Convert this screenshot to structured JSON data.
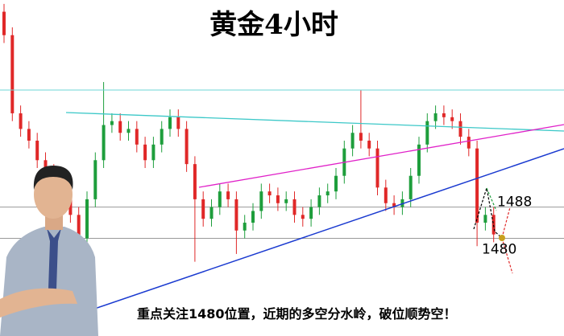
{
  "chart_data": {
    "type": "candlestick",
    "title": "黄金4小时",
    "caption": "重点关注1480位置，近期的多空分水岭，破位顺势空！",
    "ylim": [
      1455,
      1541
    ],
    "levels": [
      1488,
      1480
    ],
    "up_color": "#1e9e3c",
    "down_color": "#e02828",
    "open": [
      1538,
      1532,
      1512,
      1508,
      1505,
      1500,
      1497,
      1495,
      1492,
      1486,
      1480,
      1490,
      1500,
      1509,
      1510,
      1507,
      1508,
      1504,
      1500,
      1504,
      1508,
      1511,
      1508,
      1499,
      1490,
      1485,
      1488,
      1492,
      1490,
      1482,
      1484,
      1487,
      1492,
      1491,
      1489,
      1490,
      1486,
      1485,
      1488,
      1491,
      1492,
      1496,
      1503,
      1507,
      1505,
      1503,
      1493,
      1489,
      1488,
      1490,
      1496,
      1504,
      1510,
      1512,
      1511,
      1510,
      1506,
      1503,
      1484,
      1486
    ],
    "high": [
      1540,
      1534,
      1514,
      1510,
      1507,
      1502,
      1499,
      1497,
      1494,
      1488,
      1492,
      1502,
      1520,
      1512,
      1512,
      1510,
      1510,
      1506,
      1506,
      1510,
      1513,
      1513,
      1510,
      1501,
      1492,
      1490,
      1494,
      1494,
      1492,
      1486,
      1489,
      1494,
      1494,
      1493,
      1492,
      1492,
      1488,
      1490,
      1493,
      1494,
      1498,
      1505,
      1509,
      1518,
      1507,
      1505,
      1495,
      1491,
      1492,
      1498,
      1506,
      1512,
      1514,
      1514,
      1513,
      1512,
      1508,
      1505,
      1488,
      1488
    ],
    "low": [
      1530,
      1510,
      1506,
      1503,
      1498,
      1495,
      1493,
      1490,
      1484,
      1476,
      1478,
      1488,
      1498,
      1507,
      1505,
      1505,
      1502,
      1498,
      1498,
      1502,
      1506,
      1506,
      1497,
      1474,
      1483,
      1483,
      1486,
      1488,
      1476,
      1480,
      1482,
      1485,
      1489,
      1487,
      1487,
      1484,
      1483,
      1483,
      1486,
      1489,
      1490,
      1494,
      1501,
      1503,
      1501,
      1491,
      1487,
      1486,
      1486,
      1488,
      1494,
      1502,
      1508,
      1509,
      1508,
      1504,
      1501,
      1478,
      1482,
      1479
    ],
    "close": [
      1532,
      1512,
      1508,
      1505,
      1500,
      1497,
      1495,
      1492,
      1486,
      1480,
      1490,
      1500,
      1509,
      1510,
      1507,
      1508,
      1504,
      1500,
      1504,
      1508,
      1511,
      1508,
      1499,
      1490,
      1485,
      1488,
      1492,
      1490,
      1482,
      1484,
      1487,
      1492,
      1491,
      1489,
      1490,
      1486,
      1485,
      1488,
      1491,
      1492,
      1496,
      1503,
      1507,
      1505,
      1503,
      1493,
      1489,
      1488,
      1490,
      1496,
      1504,
      1510,
      1512,
      1511,
      1510,
      1506,
      1503,
      1484,
      1486,
      1481
    ]
  }
}
